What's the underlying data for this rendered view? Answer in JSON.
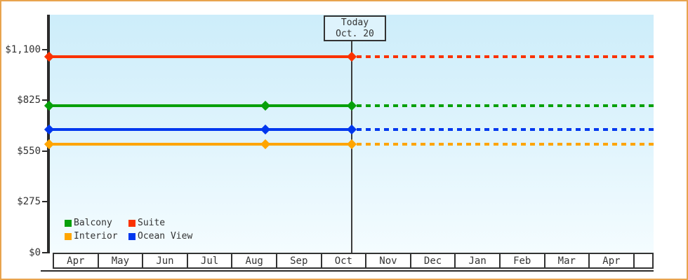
{
  "window": {
    "background_color": "#ffffff",
    "border_color": "#e8a44e"
  },
  "chart_data": {
    "type": "line",
    "title": "",
    "description": "Cruise cabin price history by category, flat prices shown solid up to today then dashed projection",
    "x_axis": {
      "labels": [
        "Apr",
        "May",
        "Jun",
        "Jul",
        "Aug",
        "Sep",
        "Oct",
        "Nov",
        "Dec",
        "Jan",
        "Feb",
        "Mar",
        "Apr",
        ""
      ]
    },
    "y_axis": {
      "tick_labels": [
        "$0",
        "$275",
        "$550",
        "$825",
        "$1,100"
      ],
      "tick_values": [
        0,
        275,
        550,
        825,
        1100
      ],
      "ylim": [
        0,
        1290
      ],
      "grid": false
    },
    "today": {
      "line1": "Today",
      "line2": "Oct. 20",
      "month": "Oct",
      "day": 20
    },
    "series": [
      {
        "name": "Suite",
        "color": "#fa3200",
        "price": 1060,
        "markers": [
          "start",
          "today"
        ],
        "style_before_today": "solid",
        "style_after_today": "dashed"
      },
      {
        "name": "Balcony",
        "color": "#06a00a",
        "price": 795,
        "markers": [
          "start",
          "aug",
          "today"
        ],
        "style_before_today": "solid",
        "style_after_today": "dashed"
      },
      {
        "name": "Ocean View",
        "color": "#0037ee",
        "price": 665,
        "markers": [
          "start",
          "aug",
          "today"
        ],
        "style_before_today": "solid",
        "style_after_today": "dashed"
      },
      {
        "name": "Interior",
        "color": "#ffa500",
        "price": 585,
        "markers": [
          "start",
          "aug",
          "today"
        ],
        "style_before_today": "solid",
        "style_after_today": "dashed"
      }
    ],
    "legend": {
      "position": "bottom-left-inside",
      "rows": [
        [
          "Balcony",
          "Suite"
        ],
        [
          "Interior",
          "Ocean View"
        ]
      ]
    },
    "plot_background": {
      "top": "#cdedfa",
      "bottom": "#f4fcff"
    },
    "axis_color": "#2b2b2b",
    "text_color": "#333333"
  }
}
